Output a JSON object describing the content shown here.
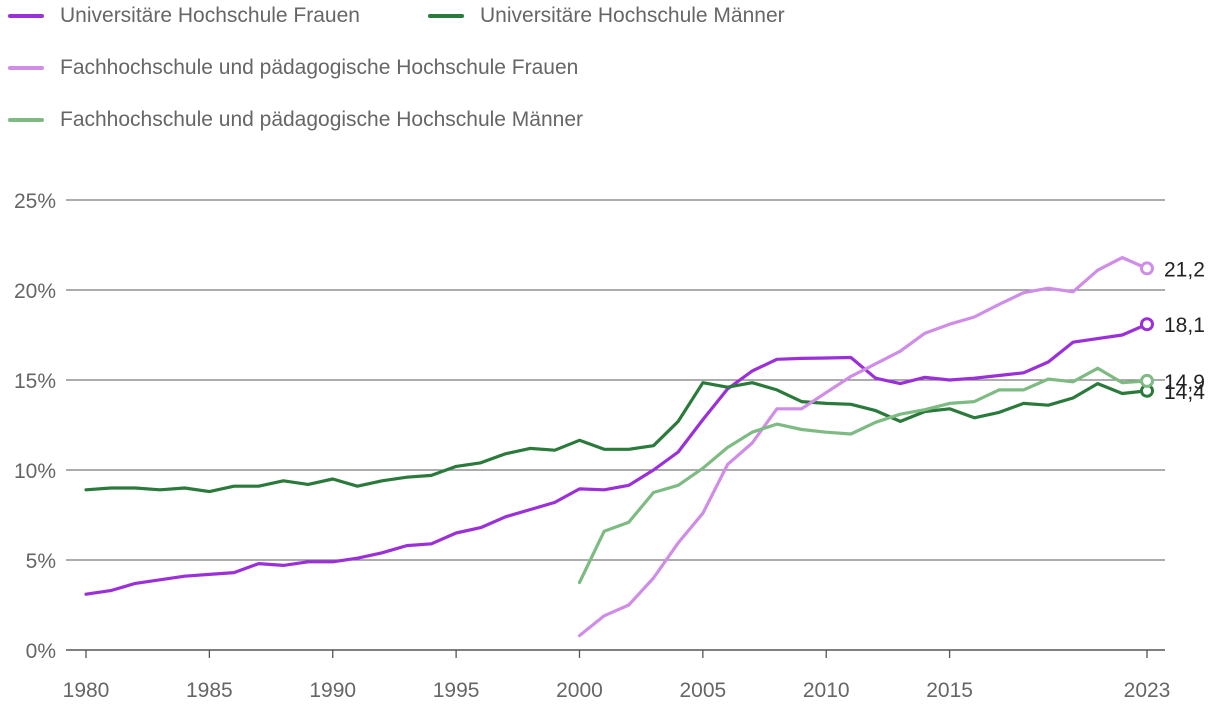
{
  "chart_data": {
    "type": "line",
    "title": "",
    "xlabel": "",
    "ylabel": "",
    "ylim": [
      0,
      25
    ],
    "xlim": [
      1980,
      2023
    ],
    "grid": true,
    "legend_position": "top",
    "y_ticks": [
      0,
      5,
      10,
      15,
      20,
      25
    ],
    "y_tick_labels": [
      "0%",
      "5%",
      "10%",
      "15%",
      "20%",
      "25%"
    ],
    "x_ticks": [
      1980,
      1985,
      1990,
      1995,
      2000,
      2005,
      2010,
      2015,
      2023
    ],
    "x_tick_labels": [
      "1980",
      "1985",
      "1990",
      "1995",
      "2000",
      "2005",
      "2010",
      "2015",
      "2023"
    ],
    "series": [
      {
        "name": "Universitäre Hochschule Frauen",
        "color": "#9b30d9",
        "end_label": "18,1",
        "x": [
          1980,
          1981,
          1982,
          1983,
          1984,
          1985,
          1986,
          1987,
          1988,
          1989,
          1990,
          1991,
          1992,
          1993,
          1994,
          1995,
          1996,
          1997,
          1998,
          1999,
          2000,
          2001,
          2002,
          2003,
          2004,
          2005,
          2006,
          2007,
          2008,
          2009,
          2010,
          2011,
          2012,
          2013,
          2014,
          2015,
          2016,
          2017,
          2018,
          2019,
          2020,
          2021,
          2022,
          2023
        ],
        "values": [
          3.1,
          3.3,
          3.7,
          3.9,
          4.1,
          4.2,
          4.3,
          4.8,
          4.7,
          4.9,
          4.9,
          5.1,
          5.4,
          5.8,
          5.9,
          6.5,
          6.8,
          7.4,
          7.8,
          8.2,
          8.95,
          8.9,
          9.15,
          10.0,
          11.0,
          12.8,
          14.5,
          15.5,
          16.15,
          16.2,
          16.22,
          16.25,
          15.1,
          14.8,
          15.15,
          15.0,
          15.1,
          15.25,
          15.4,
          16.0,
          17.1,
          17.3,
          17.5,
          18.1
        ]
      },
      {
        "name": "Universitäre Hochschule Männer",
        "color": "#2a7a3b",
        "end_label": "14,4",
        "x": [
          1980,
          1981,
          1982,
          1983,
          1984,
          1985,
          1986,
          1987,
          1988,
          1989,
          1990,
          1991,
          1992,
          1993,
          1994,
          1995,
          1996,
          1997,
          1998,
          1999,
          2000,
          2001,
          2002,
          2003,
          2004,
          2005,
          2006,
          2007,
          2008,
          2009,
          2010,
          2011,
          2012,
          2013,
          2014,
          2015,
          2016,
          2017,
          2018,
          2019,
          2020,
          2021,
          2022,
          2023
        ],
        "values": [
          8.9,
          9.0,
          9.0,
          8.9,
          9.0,
          8.8,
          9.1,
          9.1,
          9.4,
          9.2,
          9.5,
          9.1,
          9.4,
          9.6,
          9.7,
          10.2,
          10.4,
          10.9,
          11.2,
          11.1,
          11.65,
          11.15,
          11.15,
          11.35,
          12.7,
          14.85,
          14.6,
          14.85,
          14.45,
          13.8,
          13.7,
          13.65,
          13.3,
          12.7,
          13.25,
          13.4,
          12.9,
          13.2,
          13.7,
          13.6,
          14.0,
          14.8,
          14.25,
          14.4
        ]
      },
      {
        "name": "Fachhochschule und pädagogische Hochschule Frauen",
        "color": "#cf8de8",
        "end_label": "21,2",
        "x": [
          2000,
          2001,
          2002,
          2003,
          2004,
          2005,
          2006,
          2007,
          2008,
          2009,
          2010,
          2011,
          2012,
          2013,
          2014,
          2015,
          2016,
          2017,
          2018,
          2019,
          2020,
          2021,
          2022,
          2023
        ],
        "values": [
          0.8,
          1.9,
          2.5,
          4.0,
          5.95,
          7.6,
          10.3,
          11.5,
          13.4,
          13.4,
          14.3,
          15.2,
          15.9,
          16.6,
          17.6,
          18.1,
          18.5,
          19.2,
          19.85,
          20.1,
          19.9,
          21.1,
          21.8,
          21.2
        ]
      },
      {
        "name": "Fachhochschule und pädagogische Hochschule Männer",
        "color": "#7dbb83",
        "end_label": "14,9",
        "x": [
          2000,
          2001,
          2002,
          2003,
          2004,
          2005,
          2006,
          2007,
          2008,
          2009,
          2010,
          2011,
          2012,
          2013,
          2014,
          2015,
          2016,
          2017,
          2018,
          2019,
          2020,
          2021,
          2022,
          2023
        ],
        "values": [
          3.75,
          6.6,
          7.1,
          8.75,
          9.15,
          10.1,
          11.25,
          12.1,
          12.55,
          12.25,
          12.1,
          12.0,
          12.65,
          13.1,
          13.35,
          13.7,
          13.8,
          14.45,
          14.45,
          15.05,
          14.9,
          15.65,
          14.85,
          14.95
        ]
      }
    ]
  }
}
